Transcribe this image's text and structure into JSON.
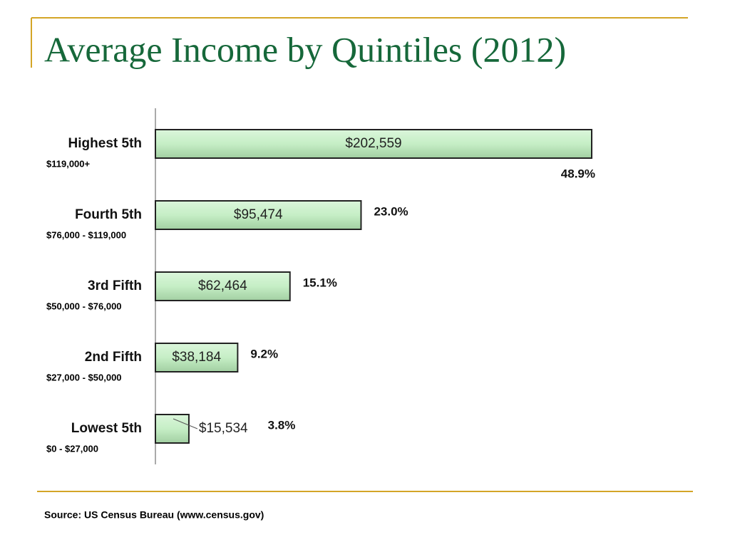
{
  "title": "Average Income by Quintiles (2012)",
  "source": "Source: US Census Bureau (www.census.gov)",
  "chart_data": {
    "type": "bar",
    "orientation": "horizontal",
    "categories": [
      "Highest 5th",
      "Fourth 5th",
      "3rd Fifth",
      "2nd Fifth",
      "Lowest 5th"
    ],
    "ranges": [
      "$119,000+",
      "$76,000 - $119,000",
      "$50,000 - $76,000",
      "$27,000 - $50,000",
      "$0 - $27,000"
    ],
    "values": [
      202559,
      95474,
      62464,
      38184,
      15534
    ],
    "value_labels": [
      "$202,559",
      "$95,474",
      "$62,464",
      "$38,184",
      "$15,534"
    ],
    "shares": [
      48.9,
      23.0,
      15.1,
      9.2,
      3.8
    ],
    "share_labels": [
      "48.9%",
      "23.0%",
      "15.1%",
      "9.2%",
      "3.8%"
    ],
    "color": "#c6efc6"
  }
}
